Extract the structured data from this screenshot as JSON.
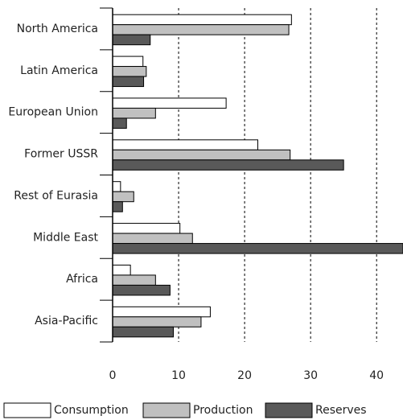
{
  "chart_data": {
    "type": "bar",
    "orientation": "horizontal",
    "categories": [
      "North America",
      "Latin America",
      "European Union",
      "Former USSR",
      "Rest of Eurasia",
      "Middle East",
      "Africa",
      "Asia-Pacific"
    ],
    "series": [
      {
        "name": "Consumption",
        "color": "#ffffff",
        "values": [
          27.1,
          4.6,
          17.2,
          22,
          1.2,
          10.2,
          2.7,
          14.8
        ]
      },
      {
        "name": "Production",
        "color": "#c0c0c0",
        "values": [
          26.7,
          5.1,
          6.5,
          26.9,
          3.2,
          12.1,
          6.5,
          13.4
        ]
      },
      {
        "name": "Reserves",
        "color": "#595959",
        "values": [
          5.7,
          4.7,
          2.1,
          35,
          1.5,
          44,
          8.7,
          9.2
        ]
      }
    ],
    "xlim": [
      0,
      44
    ],
    "xticks": [
      0,
      10,
      20,
      30,
      40
    ],
    "grid": true,
    "legend": "bottom"
  }
}
